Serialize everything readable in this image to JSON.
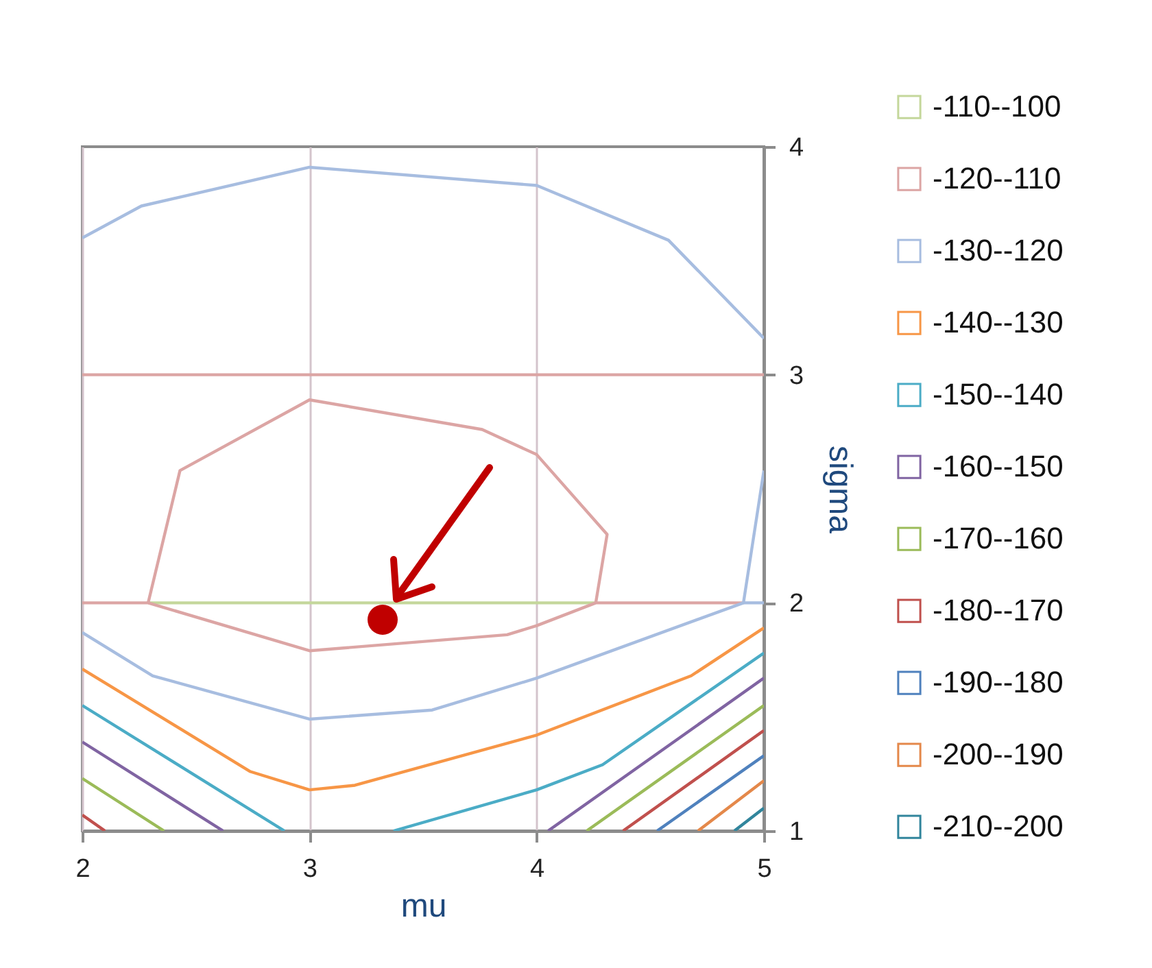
{
  "chart_data": {
    "type": "line",
    "xlabel": "mu",
    "ylabel": "sigma",
    "xlim": [
      2,
      5
    ],
    "ylim": [
      1,
      4
    ],
    "xticks": [
      2,
      3,
      4,
      5
    ],
    "yticks": [
      1,
      2,
      3,
      4
    ],
    "legend": "right",
    "grid": "x",
    "series": [
      {
        "name": "-110--100",
        "color": "#c4d79b",
        "x": [
          2.29,
          4.26
        ],
        "values": [
          2,
          2
        ]
      },
      {
        "name": "-120--110",
        "color": "#dca5a4",
        "x": [
          2.29,
          2.43,
          3,
          3.76,
          4,
          4.31,
          4.26
        ],
        "values": [
          2,
          2.58,
          2.89,
          2.76,
          2.65,
          2.3,
          2
        ]
      },
      {
        "color": "#dca5a4",
        "x": [
          2,
          2.29,
          3,
          3.87,
          4,
          4.26,
          4.91
        ],
        "values": [
          2,
          2,
          1.79,
          1.86,
          1.9,
          2,
          2
        ]
      },
      {
        "color": "#dca5a4",
        "x": [
          2,
          5
        ],
        "values": [
          3,
          3
        ]
      },
      {
        "name": "-130--120",
        "color": "#a7bde0",
        "x": [
          2,
          2.26,
          3,
          4,
          4.58,
          5
        ],
        "values": [
          3.6,
          3.74,
          3.91,
          3.83,
          3.59,
          3.16
        ]
      },
      {
        "color": "#a7bde0",
        "x": [
          2,
          2.31,
          3,
          3.54,
          4,
          4.91,
          5
        ],
        "values": [
          1.87,
          1.68,
          1.49,
          1.53,
          1.67,
          2,
          2.58
        ]
      },
      {
        "color": "#a7bde0",
        "x": [
          4.91,
          5
        ],
        "values": [
          2,
          2
        ]
      },
      {
        "name": "-140--130",
        "color": "#f79646",
        "x": [
          2,
          2.74,
          3,
          3.2,
          4,
          4.68,
          5
        ],
        "values": [
          1.71,
          1.26,
          1.18,
          1.2,
          1.42,
          1.68,
          1.89
        ]
      },
      {
        "name": "-150--140",
        "color": "#4bacc6",
        "x": [
          2,
          2.89
        ],
        "values": [
          1.55,
          1
        ]
      },
      {
        "color": "#4bacc6",
        "x": [
          3.37,
          4,
          4.29,
          5
        ],
        "values": [
          1,
          1.18,
          1.29,
          1.78
        ]
      },
      {
        "name": "-160--150",
        "color": "#8064a2",
        "x": [
          2,
          2.62
        ],
        "values": [
          1.39,
          1
        ]
      },
      {
        "color": "#8064a2",
        "x": [
          4.05,
          5
        ],
        "values": [
          1,
          1.67
        ]
      },
      {
        "name": "-170--160",
        "color": "#9bbb59",
        "x": [
          2,
          2.36
        ],
        "values": [
          1.23,
          1
        ]
      },
      {
        "color": "#9bbb59",
        "x": [
          4.22,
          5
        ],
        "values": [
          1,
          1.55
        ]
      },
      {
        "name": "-180--170",
        "color": "#c0504d",
        "x": [
          2,
          2.1
        ],
        "values": [
          1.07,
          1
        ]
      },
      {
        "color": "#c0504d",
        "x": [
          4.38,
          5
        ],
        "values": [
          1,
          1.44
        ]
      },
      {
        "name": "-190--180",
        "color": "#4f81bd",
        "x": [
          4.53,
          5
        ],
        "values": [
          1,
          1.33
        ]
      },
      {
        "name": "-200--190",
        "color": "#e4884a",
        "x": [
          4.71,
          5
        ],
        "values": [
          1,
          1.22
        ]
      },
      {
        "name": "-210--200",
        "color": "#31859c",
        "x": [
          4.87,
          5
        ],
        "values": [
          1,
          1.1
        ]
      }
    ]
  }
}
